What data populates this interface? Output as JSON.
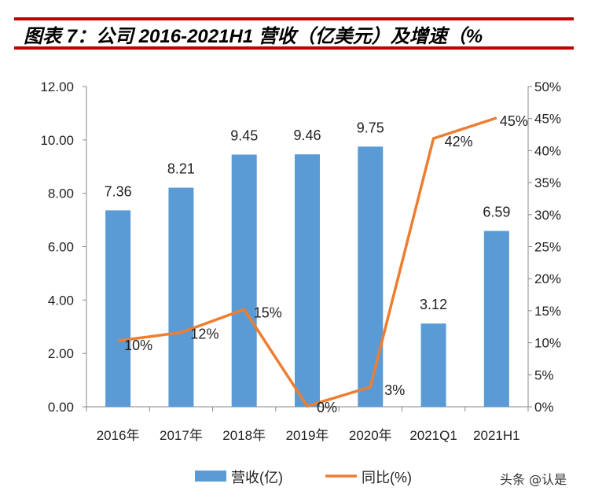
{
  "title": "图表 7：公司 2016-2021H1 营收（亿美元）及增速（%",
  "watermark": "头条 @认是",
  "colors": {
    "bar": "#5b9bd5",
    "line": "#ed7d31",
    "rule": "#c00000"
  },
  "chart_data": {
    "type": "bar+line",
    "categories": [
      "2016年",
      "2017年",
      "2018年",
      "2019年",
      "2020年",
      "2021Q1",
      "2021H1"
    ],
    "series": [
      {
        "name": "营收(亿)",
        "type": "bar",
        "axis": "left",
        "values": [
          7.36,
          8.21,
          9.45,
          9.46,
          9.75,
          3.12,
          6.59
        ],
        "labels": [
          "7.36",
          "8.21",
          "9.45",
          "9.46",
          "9.75",
          "3.12",
          "6.59"
        ]
      },
      {
        "name": "同比(%)",
        "type": "line",
        "axis": "right",
        "values": [
          10.3,
          11.6,
          15.2,
          0.1,
          3.1,
          41.9,
          45.1
        ],
        "labels": [
          "10%",
          "12%",
          "15%",
          "0%",
          "3%",
          "42%",
          "45%"
        ]
      }
    ],
    "left_axis": {
      "range": [
        0,
        12
      ],
      "ticks": [
        "0.00",
        "2.00",
        "4.00",
        "6.00",
        "8.00",
        "10.00",
        "12.00"
      ]
    },
    "right_axis": {
      "range": [
        0,
        50
      ],
      "ticks": [
        "0%",
        "5%",
        "10%",
        "15%",
        "20%",
        "25%",
        "30%",
        "35%",
        "40%",
        "45%",
        "50%"
      ]
    },
    "legend": "bottom"
  }
}
